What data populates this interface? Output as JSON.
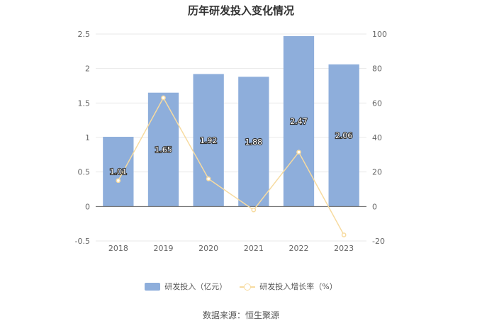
{
  "chart_data": {
    "type": "bar",
    "title": "历年研发投入变化情况",
    "categories": [
      "2018",
      "2019",
      "2020",
      "2021",
      "2022",
      "2023"
    ],
    "series": [
      {
        "name": "研发投入（亿元）",
        "type": "bar",
        "axis": "left",
        "values": [
          1.01,
          1.65,
          1.92,
          1.88,
          2.47,
          2.06
        ],
        "labels": [
          "1.01",
          "1.65",
          "1.92",
          "1.88",
          "2.47",
          "2.06"
        ]
      },
      {
        "name": "研发投入增长率（%）",
        "type": "line",
        "axis": "right",
        "values": [
          15,
          63,
          16,
          -2,
          31.5,
          -16.5
        ]
      }
    ],
    "y_left": {
      "range": [
        -0.5,
        2.5
      ],
      "ticks": [
        "2.5",
        "2",
        "1.5",
        "1",
        "0.5",
        "0",
        "-0.5"
      ]
    },
    "y_right": {
      "range": [
        -20,
        100
      ],
      "ticks": [
        "100",
        "80",
        "60",
        "40",
        "20",
        "0",
        "-20"
      ]
    },
    "grid": true,
    "legend": "bottom",
    "colors": {
      "bar": "#8eaedb",
      "line": "#f7dba0",
      "grid": "#e8e8e8",
      "axis": "#666666",
      "label": "#ffffff"
    }
  },
  "footer": {
    "source": "数据来源：恒生聚源"
  }
}
